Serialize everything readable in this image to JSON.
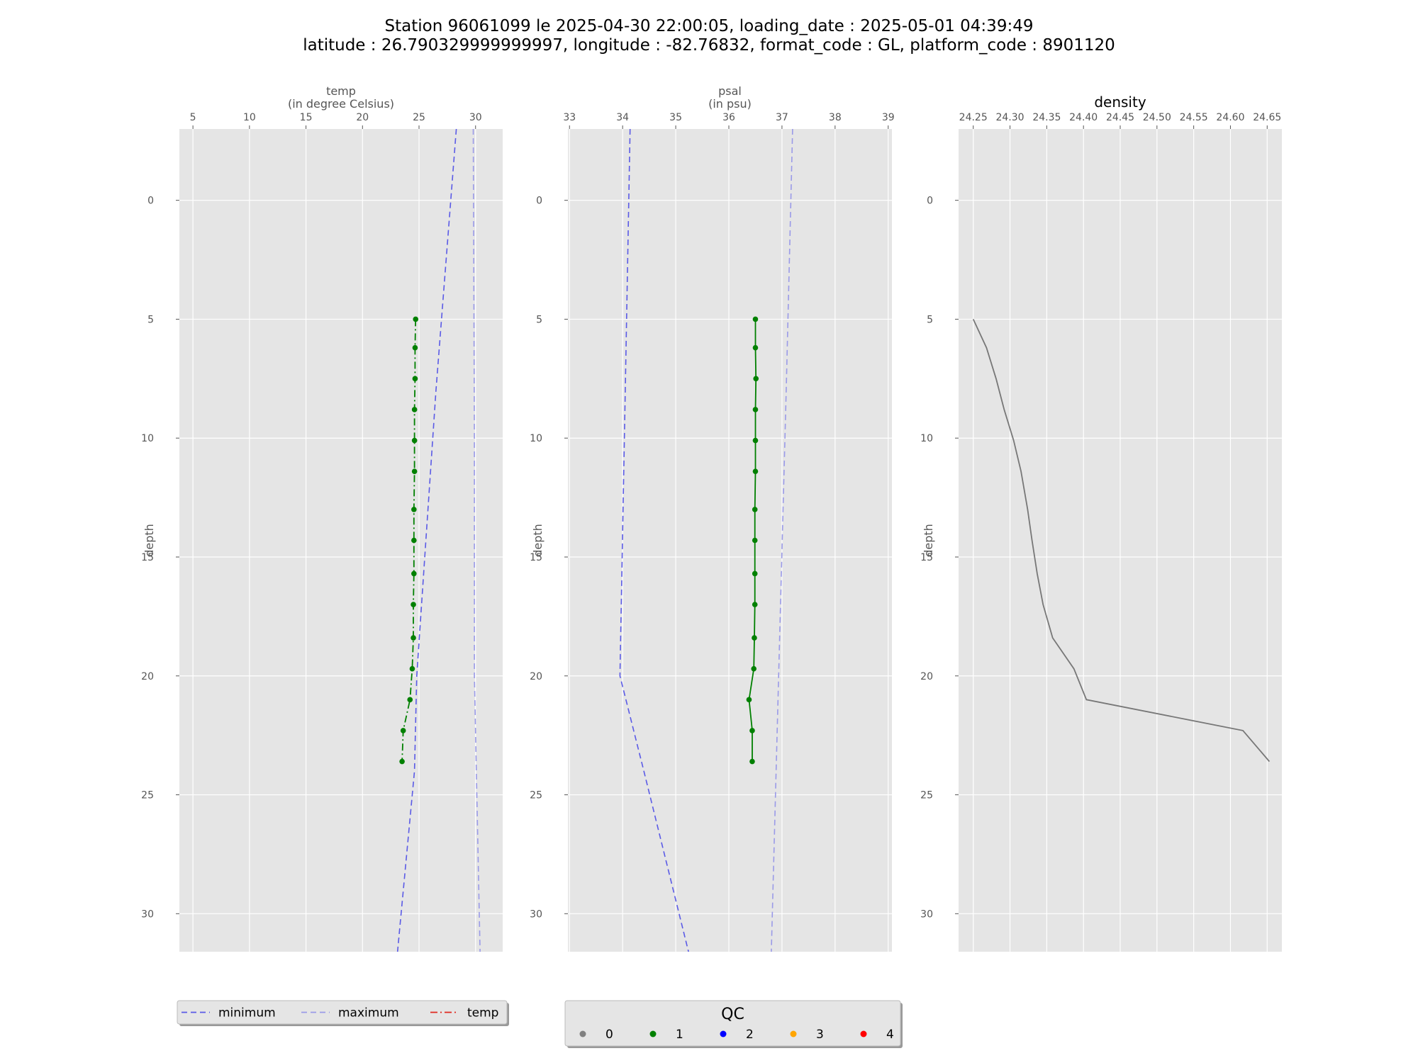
{
  "title": {
    "line1": "Station 96061099 le 2025-04-30 22:00:05, loading_date : 2025-05-01 04:39:49",
    "line2": "latitude : 26.790329999999997, longitude : -82.76832, format_code : GL, platform_code : 8901120"
  },
  "colors": {
    "background": "#e5e5e5",
    "grid": "#ffffff",
    "minimum": "#5a5ae6",
    "maximum": "#9a9ae8",
    "temp_line": "#e0281f",
    "qc_line": "#007700",
    "density": "#777777",
    "qc0": "#808080",
    "qc1": "#008000",
    "qc2": "#0000ff",
    "qc3": "#ffa500",
    "qc4": "#ff0000"
  },
  "chart_data": [
    {
      "type": "line",
      "xlabel_line1": "temp",
      "xlabel_line2": "(in degree Celsius)",
      "ylabel": "depth",
      "xlim": [
        3.8,
        32.4
      ],
      "ylim": [
        31.6,
        -3.0
      ],
      "xticks": [
        5,
        10,
        15,
        20,
        25,
        30
      ],
      "yticks": [
        0,
        5,
        10,
        15,
        20,
        25,
        30
      ],
      "y_inverted": true,
      "grid": true,
      "series": [
        {
          "name": "minimum",
          "style": "dashed",
          "x": [
            28.3,
            26.5,
            24.8,
            24.6,
            23.1
          ],
          "y": [
            -3.0,
            8.0,
            20.0,
            24.0,
            31.6
          ]
        },
        {
          "name": "maximum",
          "style": "dashed",
          "x": [
            29.8,
            29.9,
            29.9,
            30.4
          ],
          "y": [
            -3.0,
            10.0,
            20.0,
            31.6
          ]
        },
        {
          "name": "temp",
          "style": "dashdot",
          "qc": 1,
          "x": [
            24.7,
            24.65,
            24.65,
            24.6,
            24.6,
            24.6,
            24.55,
            24.55,
            24.55,
            24.5,
            24.5,
            24.4,
            24.2,
            23.6,
            23.5
          ],
          "y": [
            5.0,
            6.2,
            7.5,
            8.8,
            10.1,
            11.4,
            13.0,
            14.3,
            15.7,
            17.0,
            18.4,
            19.7,
            21.0,
            22.3,
            23.6
          ]
        }
      ]
    },
    {
      "type": "line",
      "xlabel_line1": "psal",
      "xlabel_line2": "(in psu)",
      "ylabel": "depth",
      "xlim": [
        32.97,
        39.07
      ],
      "ylim": [
        31.6,
        -3.0
      ],
      "xticks": [
        33,
        34,
        35,
        36,
        37,
        38,
        39
      ],
      "yticks": [
        0,
        5,
        10,
        15,
        20,
        25,
        30
      ],
      "y_inverted": true,
      "grid": true,
      "series": [
        {
          "name": "minimum",
          "style": "dashed",
          "x": [
            34.14,
            34.05,
            33.95,
            34.4,
            35.24
          ],
          "y": [
            -3.0,
            8.0,
            20.0,
            24.0,
            31.6
          ]
        },
        {
          "name": "maximum",
          "style": "dashed",
          "x": [
            37.2,
            37.08,
            36.8
          ],
          "y": [
            -3.0,
            8.0,
            31.6
          ]
        },
        {
          "name": "psal",
          "style": "solid",
          "qc": 1,
          "x": [
            36.5,
            36.5,
            36.51,
            36.5,
            36.5,
            36.5,
            36.49,
            36.49,
            36.49,
            36.49,
            36.48,
            36.47,
            36.38,
            36.44,
            36.44
          ],
          "y": [
            5.0,
            6.2,
            7.5,
            8.8,
            10.1,
            11.4,
            13.0,
            14.3,
            15.7,
            17.0,
            18.4,
            19.7,
            21.0,
            22.3,
            23.6
          ]
        }
      ]
    },
    {
      "type": "line",
      "title": "density",
      "ylabel": "depth",
      "xlim": [
        24.23,
        24.67
      ],
      "ylim": [
        31.6,
        -3.0
      ],
      "xticks": [
        24.25,
        24.3,
        24.35,
        24.4,
        24.45,
        24.5,
        24.55,
        24.6,
        24.65
      ],
      "xtick_labels": [
        "24.25",
        "24.30",
        "24.35",
        "24.40",
        "24.45",
        "24.50",
        "24.55",
        "24.60",
        "24.65"
      ],
      "yticks": [
        0,
        5,
        10,
        15,
        20,
        25,
        30
      ],
      "y_inverted": true,
      "grid": true,
      "series": [
        {
          "style": "solid",
          "x": [
            24.25,
            24.268,
            24.281,
            24.292,
            24.305,
            24.315,
            24.324,
            24.33,
            24.337,
            24.345,
            24.358,
            24.387,
            24.404,
            24.617,
            24.653
          ],
          "y": [
            5.0,
            6.2,
            7.5,
            8.8,
            10.1,
            11.4,
            13.0,
            14.3,
            15.7,
            17.0,
            18.4,
            19.7,
            21.0,
            22.3,
            23.6
          ]
        }
      ]
    }
  ],
  "legend_lines": {
    "items": [
      {
        "label": "minimum",
        "style": "dashed",
        "color": "#5a5ae6"
      },
      {
        "label": "maximum",
        "style": "dashed",
        "color": "#9a9ae8"
      },
      {
        "label": "temp",
        "style": "dashdot",
        "color": "#e0281f"
      }
    ]
  },
  "legend_qc": {
    "title": "QC",
    "items": [
      {
        "label": "0",
        "color": "#808080"
      },
      {
        "label": "1",
        "color": "#008000"
      },
      {
        "label": "2",
        "color": "#0000ff"
      },
      {
        "label": "3",
        "color": "#ffa500"
      },
      {
        "label": "4",
        "color": "#ff0000"
      }
    ]
  }
}
